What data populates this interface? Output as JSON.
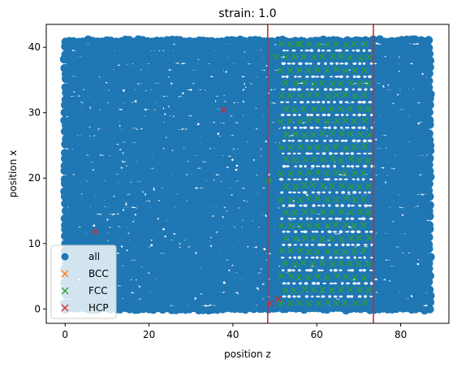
{
  "chart_data": {
    "type": "scatter",
    "title": "strain: 1.0",
    "xlabel": "position z",
    "ylabel": "position x",
    "xlim": [
      -4.5,
      91.5
    ],
    "ylim": [
      -2.2,
      43.5
    ],
    "xticks": [
      0,
      20,
      40,
      60,
      80
    ],
    "yticks": [
      0,
      10,
      20,
      30,
      40
    ],
    "grid": false,
    "legend_position": "lower-left",
    "vertical_lines": [
      {
        "x": 48.3,
        "color": "#d62728"
      },
      {
        "x": 73.5,
        "color": "#d62728"
      }
    ],
    "series": [
      {
        "name": "all",
        "marker": "circle",
        "color": "#1f77b4",
        "description_region": {
          "x_range": [
            0,
            87.5
          ],
          "y_range": [
            0,
            41.3
          ]
        }
      },
      {
        "name": "BCC",
        "marker": "x",
        "color": "#ff7f0e",
        "points": []
      },
      {
        "name": "FCC",
        "marker": "x",
        "color": "#2ca02c",
        "row_pattern": {
          "x_range": [
            51.5,
            73.5
          ],
          "rows_y": [
            0.9,
            2.9,
            4.9,
            6.9,
            8.8,
            10.8,
            12.8,
            14.8,
            16.8,
            18.8,
            20.8,
            22.8,
            24.7,
            26.7,
            28.7,
            30.6,
            32.6,
            34.5,
            36.5,
            38.5,
            40.5
          ]
        },
        "extra_points": [
          [
            48.5,
            19.6
          ],
          [
            50.2,
            38.6
          ],
          [
            55.5,
            40.5
          ]
        ]
      },
      {
        "name": "HCP",
        "marker": "x",
        "color": "#d62728",
        "points": [
          [
            37.8,
            30.4
          ],
          [
            7.2,
            11.8
          ],
          [
            50.8,
            1.5
          ],
          [
            48.8,
            0.8
          ]
        ]
      }
    ]
  }
}
